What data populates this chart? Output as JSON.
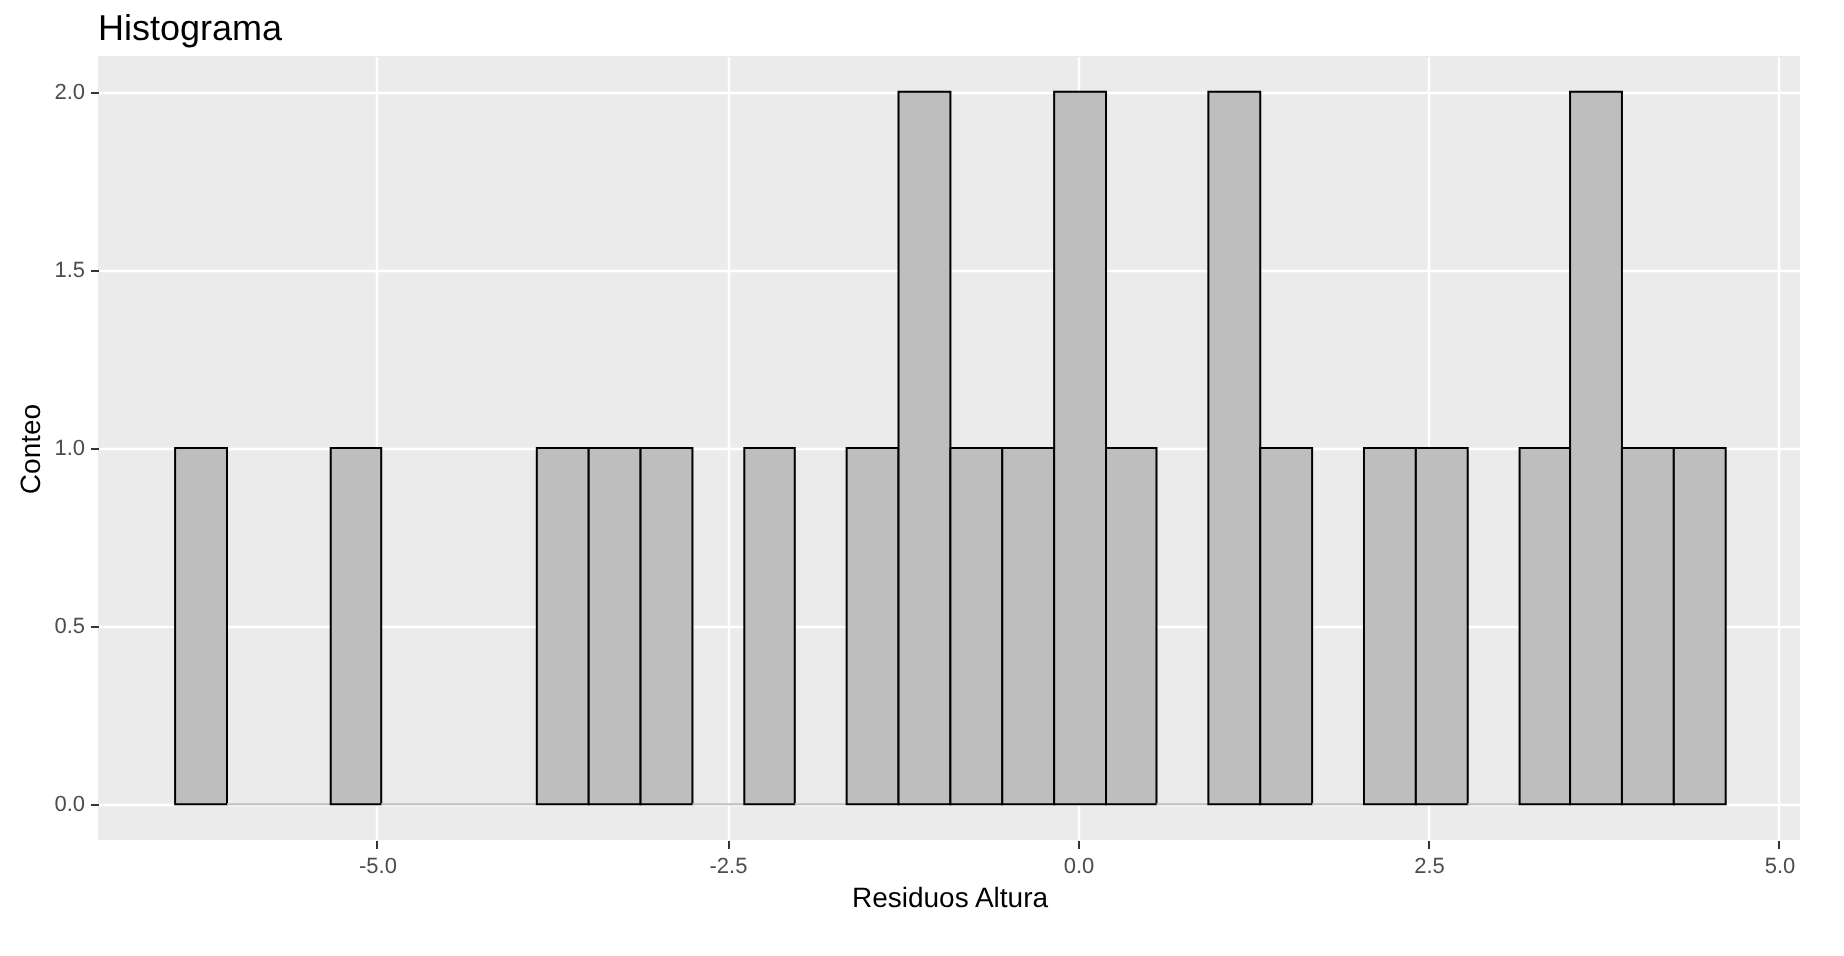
{
  "chart_data": {
    "type": "histogram",
    "title": "Histograma",
    "xlabel": "Residuos Altura",
    "ylabel": "Conteo",
    "bins": [
      -6.44,
      -6.07,
      -5.7,
      -5.33,
      -4.97,
      -4.6,
      -4.23,
      -3.86,
      -3.49,
      -3.12,
      -2.75,
      -2.38,
      -2.02,
      -1.65,
      -1.28,
      -0.91,
      -0.54,
      -0.17,
      0.2,
      0.56,
      0.93,
      1.3,
      1.67,
      2.04,
      2.41,
      2.78,
      3.15,
      3.51,
      3.88,
      4.25,
      4.62
    ],
    "values": [
      1,
      0,
      0,
      1,
      0,
      0,
      0,
      1,
      1,
      1,
      0,
      1,
      0,
      1,
      2,
      1,
      1,
      2,
      1,
      0,
      2,
      1,
      0,
      1,
      1,
      0,
      1,
      2,
      1,
      1
    ],
    "color": "#bebebe",
    "xlim": [
      -6.99,
      5.15
    ],
    "xticks": [
      {
        "value": -5,
        "label": "-5.0"
      },
      {
        "value": -2.5,
        "label": "-2.5"
      },
      {
        "value": 0,
        "label": "0.0"
      },
      {
        "value": 2.5,
        "label": "2.5"
      },
      {
        "value": 5,
        "label": "5.0"
      }
    ],
    "ylim": [
      -0.1,
      2.1
    ],
    "yticks": [
      {
        "value": 0,
        "label": "0.0"
      },
      {
        "value": 0.5,
        "label": "0.5"
      },
      {
        "value": 1,
        "label": "1.0"
      },
      {
        "value": 1.5,
        "label": "1.5"
      },
      {
        "value": 2,
        "label": "2.0"
      }
    ],
    "grid": true
  }
}
